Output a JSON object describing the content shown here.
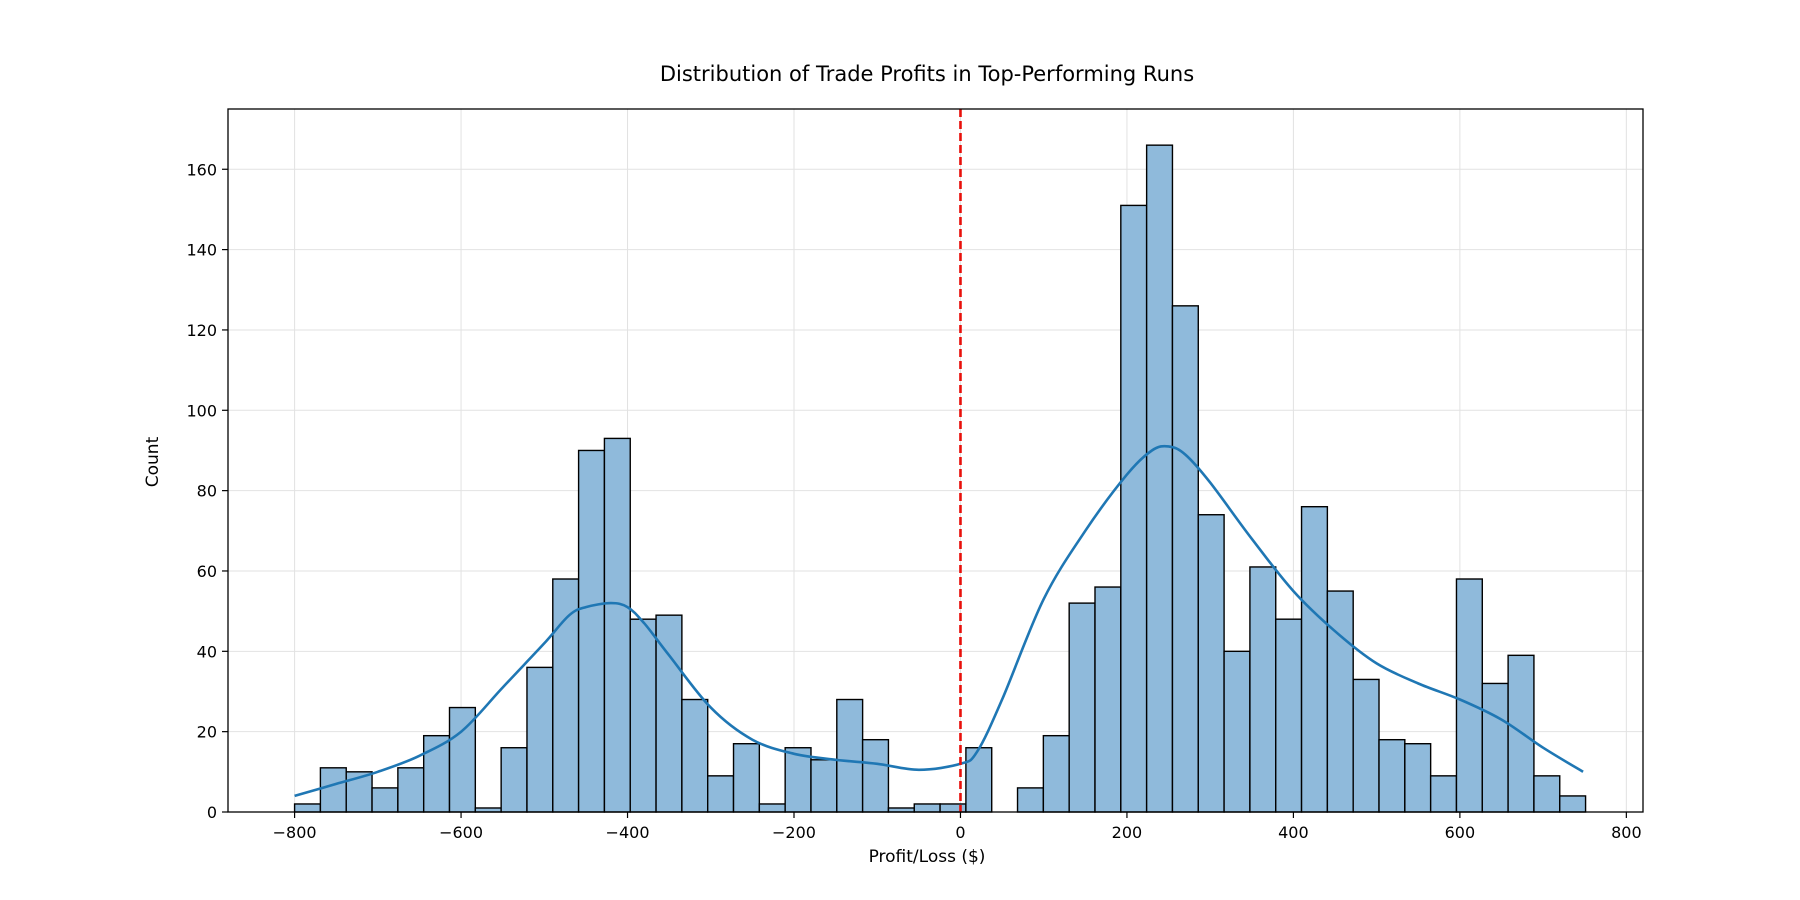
{
  "chart_data": {
    "type": "bar",
    "subtype": "histogram_with_kde",
    "title": "Distribution of Trade Profits in Top-Performing Runs",
    "xlabel": "Profit/Loss ($)",
    "ylabel": "Count",
    "xlim": [
      -880,
      820
    ],
    "ylim": [
      0,
      175
    ],
    "xticks": [
      -800,
      -600,
      -400,
      -200,
      0,
      200,
      400,
      600,
      800
    ],
    "xtick_labels": [
      "−800",
      "−600",
      "−400",
      "−200",
      "0",
      "200",
      "400",
      "600",
      "800"
    ],
    "yticks": [
      0,
      20,
      40,
      60,
      80,
      100,
      120,
      140,
      160
    ],
    "ytick_labels": [
      "0",
      "20",
      "40",
      "60",
      "80",
      "100",
      "120",
      "140",
      "160"
    ],
    "grid": true,
    "bin_start": -800,
    "bin_width": 31.02,
    "counts": [
      2,
      11,
      10,
      6,
      11,
      19,
      26,
      1,
      16,
      36,
      58,
      90,
      93,
      48,
      49,
      28,
      9,
      17,
      2,
      16,
      13,
      28,
      18,
      1,
      2,
      2,
      16,
      0,
      6,
      19,
      52,
      56,
      151,
      166,
      126,
      74,
      40,
      61,
      48,
      76,
      55,
      33,
      18,
      17,
      9,
      58,
      32,
      39,
      9,
      4
    ],
    "kde": {
      "x": [
        -800,
        -750,
        -700,
        -650,
        -600,
        -550,
        -500,
        -470,
        -450,
        -420,
        -400,
        -380,
        -350,
        -300,
        -250,
        -200,
        -150,
        -100,
        -50,
        0,
        20,
        50,
        100,
        150,
        200,
        230,
        250,
        270,
        300,
        350,
        400,
        450,
        500,
        550,
        600,
        650,
        700,
        748
      ],
      "y": [
        4,
        7,
        10,
        14,
        20,
        31,
        42,
        49,
        51,
        52,
        51,
        47,
        39,
        26,
        18,
        14.5,
        13,
        12,
        10.5,
        12,
        15,
        28,
        53,
        70,
        84,
        90,
        91,
        89,
        82,
        68,
        55,
        45,
        37,
        32,
        28,
        23,
        16,
        10
      ]
    },
    "reference_line": {
      "x": 0,
      "color": "#e8100b",
      "style": "dashed"
    },
    "colors": {
      "bar_fill": "#8fbadb",
      "bar_edge": "#000000",
      "kde_line": "#1f77b4",
      "grid": "#e2e2e2"
    }
  }
}
